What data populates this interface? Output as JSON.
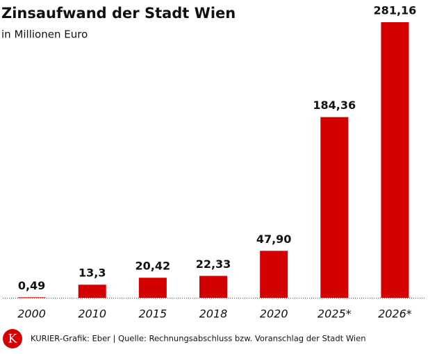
{
  "chart_data": {
    "type": "bar",
    "title": "Zinsaufwand der Stadt Wien",
    "subtitle": "in Millionen Euro",
    "categories": [
      "2000",
      "2010",
      "2015",
      "2018",
      "2020",
      "2025*",
      "2026*"
    ],
    "values": [
      0.49,
      13.3,
      20.42,
      22.33,
      47.9,
      184.36,
      281.16
    ],
    "value_labels": [
      "0,49",
      "13,3",
      "20,42",
      "22,33",
      "47,90",
      "184,36",
      "281,16"
    ],
    "color": "#d40000",
    "logo": "K",
    "source": "KURIER-Grafik: Eber | Quelle: Rechnungsabschluss bzw. Voranschlag der Stadt Wien"
  }
}
